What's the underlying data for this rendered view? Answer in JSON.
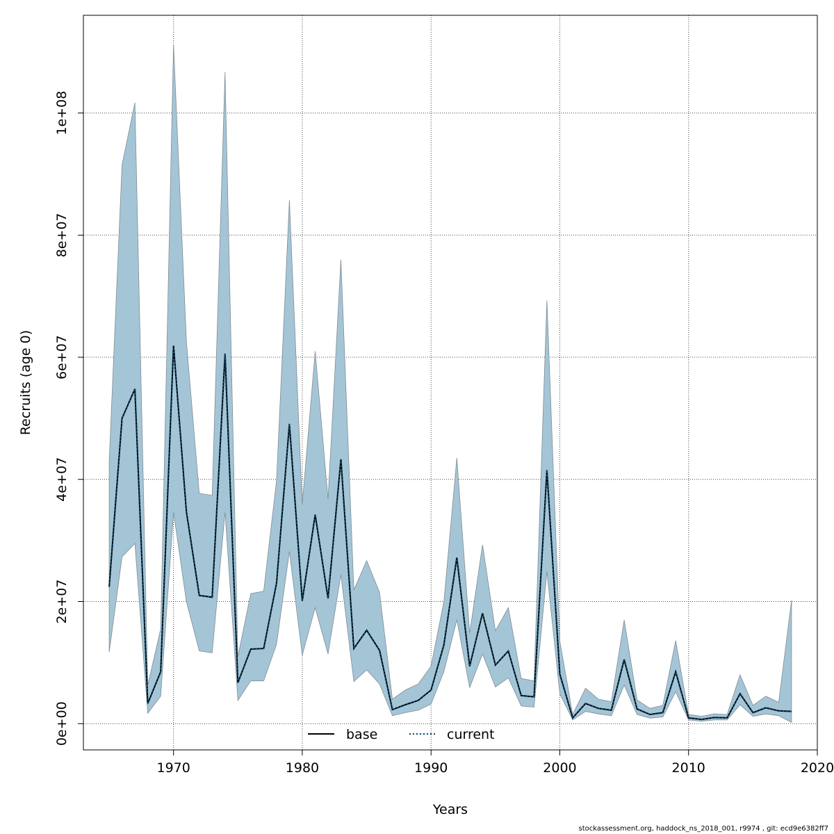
{
  "chart_data": {
    "type": "area",
    "xlabel": "Years",
    "ylabel": "Recruits (age 0)",
    "xlim": [
      1963,
      2020
    ],
    "ylim": [
      -4300000,
      116000000
    ],
    "x_ticks": [
      1970,
      1980,
      1990,
      2000,
      2010,
      2020
    ],
    "y_ticks": [
      0,
      20000000,
      40000000,
      60000000,
      80000000,
      100000000
    ],
    "y_tick_labels": [
      "0e+00",
      "2e+07",
      "4e+07",
      "6e+07",
      "8e+07",
      "1e+08"
    ],
    "grid": true,
    "legend_position": "bottom-center",
    "colors": {
      "band_fill": "#a4c5d6",
      "band_stroke": "#7f8c94",
      "base_line": "#000000",
      "current_line": "#0b4f78",
      "grid": "#444444"
    },
    "x": [
      1965,
      1966,
      1967,
      1968,
      1969,
      1970,
      1971,
      1972,
      1973,
      1974,
      1975,
      1976,
      1977,
      1978,
      1979,
      1980,
      1981,
      1982,
      1983,
      1984,
      1985,
      1986,
      1987,
      1988,
      1989,
      1990,
      1991,
      1992,
      1993,
      1994,
      1995,
      1996,
      1997,
      1998,
      1999,
      2000,
      2001,
      2002,
      2003,
      2004,
      2005,
      2006,
      2007,
      2008,
      2009,
      2010,
      2011,
      2012,
      2013,
      2014,
      2015,
      2016,
      2017,
      2018
    ],
    "upper": [
      43000000,
      91500000,
      101700000,
      6300000,
      15500000,
      111200000,
      62600000,
      37700000,
      37400000,
      106700000,
      11000000,
      21300000,
      21700000,
      39800000,
      85700000,
      35900000,
      61000000,
      36800000,
      76000000,
      21900000,
      26700000,
      21500000,
      4000000,
      5500000,
      6500000,
      9400000,
      20000000,
      43500000,
      14800000,
      29300000,
      15200000,
      19000000,
      7400000,
      7000000,
      69300000,
      13500000,
      1500000,
      5800000,
      4000000,
      3600000,
      17000000,
      3900000,
      2500000,
      3000000,
      13600000,
      1500000,
      1200000,
      1600000,
      1500000,
      8000000,
      3000000,
      4500000,
      3500000,
      20200000
    ],
    "lower": [
      11700000,
      27300000,
      29500000,
      1700000,
      4500000,
      34600000,
      20000000,
      11900000,
      11600000,
      34600000,
      3800000,
      7000000,
      7000000,
      13000000,
      28200000,
      11200000,
      19000000,
      11400000,
      24400000,
      6900000,
      8800000,
      6500000,
      1300000,
      1800000,
      2200000,
      3200000,
      8500000,
      17000000,
      5900000,
      11400000,
      6000000,
      7500000,
      2900000,
      2700000,
      24900000,
      4900000,
      600000,
      2000000,
      1600000,
      1300000,
      6300000,
      1500000,
      900000,
      1100000,
      5200000,
      600000,
      400000,
      600000,
      600000,
      3100000,
      1200000,
      1600000,
      1300000,
      200000
    ],
    "series": [
      {
        "name": "base",
        "values": [
          22400000,
          50000000,
          54800000,
          3300000,
          8500000,
          61900000,
          34700000,
          21000000,
          20700000,
          60600000,
          6700000,
          12200000,
          12300000,
          23000000,
          49100000,
          20100000,
          34200000,
          20500000,
          43300000,
          12300000,
          15300000,
          12000000,
          2300000,
          3100000,
          3800000,
          5500000,
          12900000,
          27200000,
          9400000,
          18100000,
          9600000,
          11900000,
          4600000,
          4400000,
          41500000,
          8100000,
          950000,
          3300000,
          2500000,
          2200000,
          10500000,
          2400000,
          1500000,
          1800000,
          8500000,
          950000,
          700000,
          1000000,
          950000,
          4900000,
          1800000,
          2600000,
          2100000,
          2000000
        ]
      },
      {
        "name": "current",
        "values": [
          22400000,
          50000000,
          54800000,
          3300000,
          8500000,
          61900000,
          34700000,
          21000000,
          20700000,
          60600000,
          6700000,
          12200000,
          12300000,
          23000000,
          49100000,
          20100000,
          34200000,
          20500000,
          43300000,
          12300000,
          15300000,
          12000000,
          2300000,
          3100000,
          3800000,
          5500000,
          12900000,
          27200000,
          9400000,
          18100000,
          9600000,
          11900000,
          4600000,
          4400000,
          41500000,
          8100000,
          950000,
          3300000,
          2500000,
          2200000,
          10500000,
          2400000,
          1500000,
          1800000,
          8500000,
          950000,
          700000,
          1000000,
          950000,
          4900000,
          1800000,
          2600000,
          2100000,
          2000000
        ]
      }
    ]
  },
  "footer": "stockassessment.org, haddock_ns_2018_001, r9974 , git: ecd9e6382ff7"
}
